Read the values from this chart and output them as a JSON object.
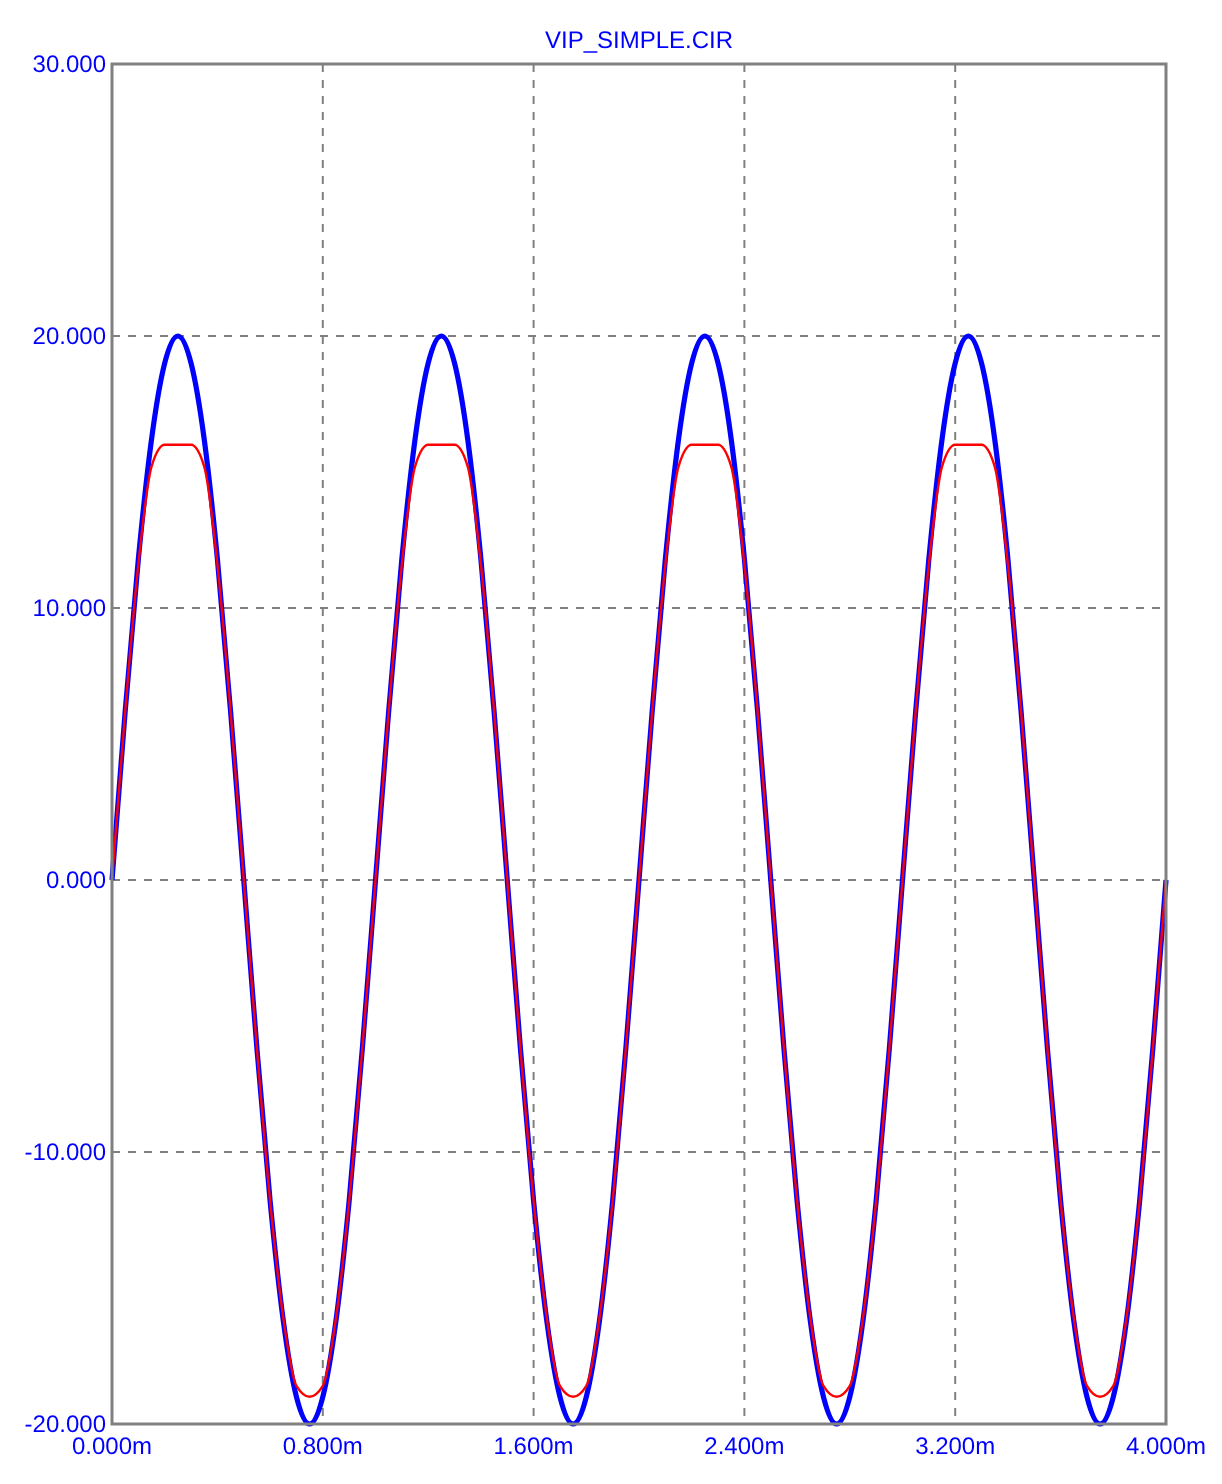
{
  "chart_data": {
    "type": "line",
    "title": "VIP_SIMPLE.CIR",
    "x": [
      0,
      0.05,
      0.1,
      0.15,
      0.2,
      0.25,
      0.3,
      0.35,
      0.4,
      0.45,
      0.5,
      0.55,
      0.6,
      0.65,
      0.7,
      0.75,
      0.8,
      0.85,
      0.9,
      0.95,
      1,
      1.05,
      1.1,
      1.15,
      1.2,
      1.25,
      1.3,
      1.35,
      1.4,
      1.45,
      1.5,
      1.55,
      1.6,
      1.65,
      1.7,
      1.75,
      1.8,
      1.85,
      1.9,
      1.95,
      2,
      2.05,
      2.1,
      2.15,
      2.2,
      2.25,
      2.3,
      2.35,
      2.4,
      2.45,
      2.5,
      2.55,
      2.6,
      2.65,
      2.7,
      2.75,
      2.8,
      2.85,
      2.9,
      2.95,
      3,
      3.05,
      3.1,
      3.15,
      3.2,
      3.25,
      3.3,
      3.35,
      3.4,
      3.45,
      3.5,
      3.55,
      3.6,
      3.65,
      3.7,
      3.75,
      3.8,
      3.85,
      3.9,
      3.95,
      4
    ],
    "series": [
      {
        "color": "#0000ff",
        "values": [
          0,
          6.2,
          11.8,
          16.2,
          19,
          20,
          19,
          16.2,
          11.8,
          6.2,
          0,
          -6.2,
          -11.8,
          -16.2,
          -19,
          -20,
          -19,
          -16.2,
          -11.8,
          -6.2,
          0,
          6.2,
          11.8,
          16.2,
          19,
          20,
          19,
          16.2,
          11.8,
          6.2,
          0,
          -6.2,
          -11.8,
          -16.2,
          -19,
          -20,
          -19,
          -16.2,
          -11.8,
          -6.2,
          0,
          6.2,
          11.8,
          16.2,
          19,
          20,
          19,
          16.2,
          11.8,
          6.2,
          0,
          -6.2,
          -11.8,
          -16.2,
          -19,
          -20,
          -19,
          -16.2,
          -11.8,
          -6.2,
          0,
          6.2,
          11.8,
          16.2,
          19,
          20,
          19,
          16.2,
          11.8,
          6.2,
          0,
          -6.2,
          -11.8,
          -16.2,
          -19,
          -20,
          -19,
          -16.2,
          -11.8,
          -6.2,
          0
        ]
      },
      {
        "color": "#ff0000",
        "values": [
          0,
          6.2,
          11.6,
          15.2,
          16,
          16,
          16,
          15.2,
          11.6,
          6.2,
          0,
          -6.2,
          -11.8,
          -16.1,
          -18.6,
          -19,
          -18.6,
          -16.1,
          -11.8,
          -6.2,
          0,
          6.2,
          11.6,
          15.2,
          16,
          16,
          16,
          15.2,
          11.6,
          6.2,
          0,
          -6.2,
          -11.8,
          -16.1,
          -18.6,
          -19,
          -18.6,
          -16.1,
          -11.8,
          -6.2,
          0,
          6.2,
          11.6,
          15.2,
          16,
          16,
          16,
          15.2,
          11.6,
          6.2,
          0,
          -6.2,
          -11.8,
          -16.1,
          -18.6,
          -19,
          -18.6,
          -16.1,
          -11.8,
          -6.2,
          0,
          6.2,
          11.6,
          15.2,
          16,
          16,
          16,
          15.2,
          11.6,
          6.2,
          0,
          -6.2,
          -11.8,
          -16.1,
          -18.6,
          -19,
          -18.6,
          -16.1,
          -11.8,
          -6.2,
          0
        ]
      }
    ],
    "xlim": [
      0,
      4
    ],
    "xticks": [
      {
        "value": 0,
        "label": "0.000m"
      },
      {
        "value": 0.8,
        "label": "0.800m"
      },
      {
        "value": 1.6,
        "label": "1.600m"
      },
      {
        "value": 2.4,
        "label": "2.400m"
      },
      {
        "value": 3.2,
        "label": "3.200m"
      },
      {
        "value": 4,
        "label": "4.000m"
      }
    ],
    "ylim": [
      -20,
      30
    ],
    "yticks": [
      {
        "value": -20,
        "label": "-20.000"
      },
      {
        "value": -10,
        "label": "-10.000"
      },
      {
        "value": 0,
        "label": "0.000"
      },
      {
        "value": 10,
        "label": "10.000"
      },
      {
        "value": 20,
        "label": "20.000"
      },
      {
        "value": 30,
        "label": "30.000"
      }
    ],
    "grid": true,
    "marker": "none",
    "line_style": "solid"
  }
}
